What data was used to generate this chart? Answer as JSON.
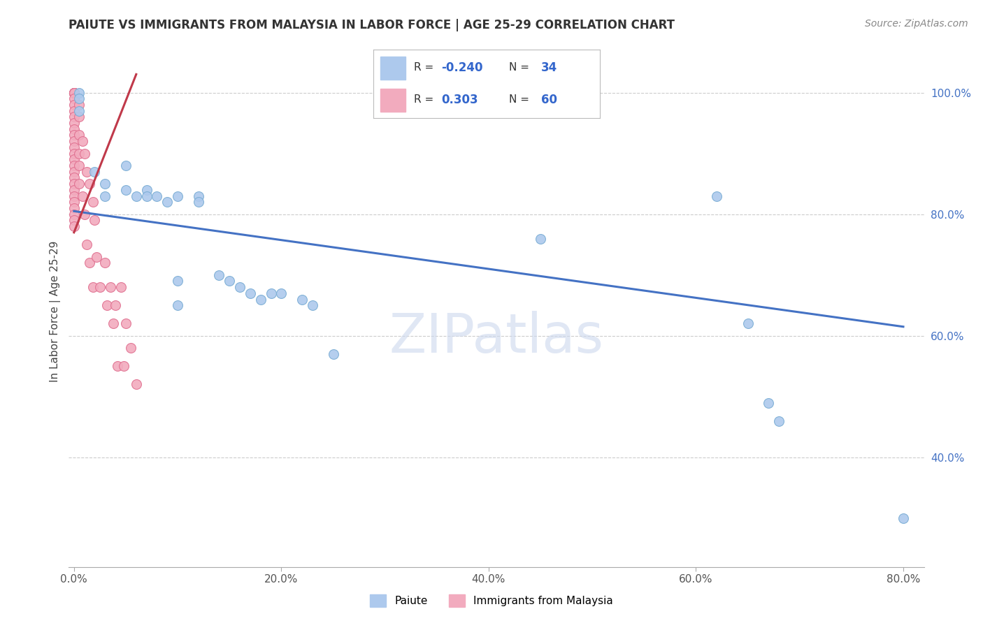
{
  "title": "PAIUTE VS IMMIGRANTS FROM MALAYSIA IN LABOR FORCE | AGE 25-29 CORRELATION CHART",
  "source": "Source: ZipAtlas.com",
  "ylabel": "In Labor Force | Age 25-29",
  "xlim": [
    -0.005,
    0.82
  ],
  "ylim": [
    0.22,
    1.06
  ],
  "legend_r1": "-0.240",
  "legend_n1": "34",
  "legend_r2": "0.303",
  "legend_n2": "60",
  "watermark": "ZIPatlas",
  "paiute_color": "#adc9ed",
  "malaysia_color": "#f2abbe",
  "paiute_edge": "#7aadd4",
  "malaysia_edge": "#e07090",
  "trend_blue": "#4472c4",
  "trend_pink": "#c0394a",
  "paiute_x": [
    0.005,
    0.005,
    0.005,
    0.02,
    0.03,
    0.03,
    0.05,
    0.05,
    0.06,
    0.07,
    0.07,
    0.08,
    0.09,
    0.1,
    0.1,
    0.1,
    0.12,
    0.12,
    0.14,
    0.15,
    0.16,
    0.17,
    0.18,
    0.19,
    0.2,
    0.22,
    0.23,
    0.25,
    0.45,
    0.62,
    0.65,
    0.67,
    0.68,
    0.8
  ],
  "paiute_y": [
    1.0,
    0.99,
    0.97,
    0.87,
    0.85,
    0.83,
    0.88,
    0.84,
    0.83,
    0.84,
    0.83,
    0.83,
    0.82,
    0.83,
    0.69,
    0.65,
    0.83,
    0.82,
    0.7,
    0.69,
    0.68,
    0.67,
    0.66,
    0.67,
    0.67,
    0.66,
    0.65,
    0.57,
    0.76,
    0.83,
    0.62,
    0.49,
    0.46,
    0.3
  ],
  "malaysia_x": [
    0.0,
    0.0,
    0.0,
    0.0,
    0.0,
    0.0,
    0.0,
    0.0,
    0.0,
    0.0,
    0.0,
    0.0,
    0.0,
    0.0,
    0.0,
    0.0,
    0.0,
    0.0,
    0.0,
    0.0,
    0.0,
    0.0,
    0.0,
    0.0,
    0.0,
    0.0,
    0.0,
    0.0,
    0.0,
    0.0,
    0.005,
    0.005,
    0.005,
    0.005,
    0.005,
    0.005,
    0.008,
    0.008,
    0.01,
    0.01,
    0.012,
    0.012,
    0.015,
    0.015,
    0.018,
    0.018,
    0.02,
    0.022,
    0.025,
    0.03,
    0.032,
    0.035,
    0.038,
    0.04,
    0.042,
    0.045,
    0.048,
    0.05,
    0.055,
    0.06
  ],
  "malaysia_y": [
    1.0,
    1.0,
    1.0,
    1.0,
    1.0,
    1.0,
    1.0,
    1.0,
    0.99,
    0.98,
    0.97,
    0.96,
    0.95,
    0.94,
    0.93,
    0.92,
    0.91,
    0.9,
    0.89,
    0.88,
    0.87,
    0.86,
    0.85,
    0.84,
    0.83,
    0.82,
    0.81,
    0.8,
    0.79,
    0.78,
    0.98,
    0.96,
    0.93,
    0.9,
    0.88,
    0.85,
    0.92,
    0.83,
    0.9,
    0.8,
    0.87,
    0.75,
    0.85,
    0.72,
    0.82,
    0.68,
    0.79,
    0.73,
    0.68,
    0.72,
    0.65,
    0.68,
    0.62,
    0.65,
    0.55,
    0.68,
    0.55,
    0.62,
    0.58,
    0.52
  ],
  "blue_trend_x0": 0.0,
  "blue_trend_y0": 0.805,
  "blue_trend_x1": 0.8,
  "blue_trend_y1": 0.615,
  "pink_trend_x0": 0.0,
  "pink_trend_x1": 0.06,
  "pink_trend_y0": 0.77,
  "pink_trend_y1": 1.03
}
